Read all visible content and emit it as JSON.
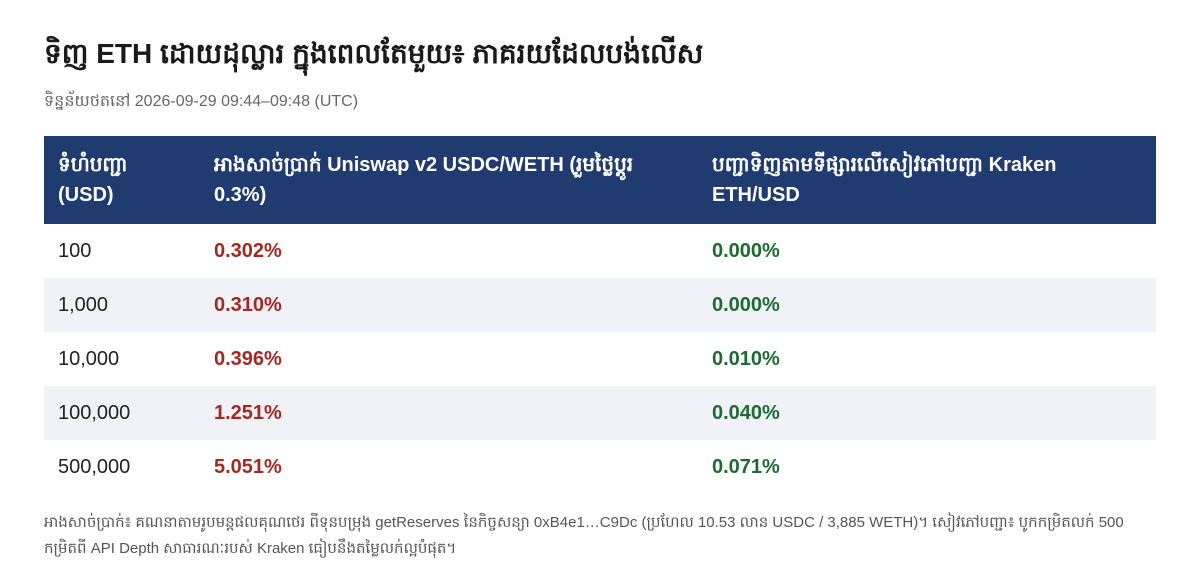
{
  "header": {
    "title": "ទិញ ETH ដោយដុល្លារ ក្នុងពេលតែមួយ៖ ភាគរយដែលបង់លើស",
    "subtitle": "ទិន្នន័យថតនៅ 2026-09-29 09:44–09:48 (UTC)"
  },
  "table": {
    "columns": [
      "ទំហំបញ្ជា (USD)",
      "អាងសាច់ប្រាក់ Uniswap v2 USDC/WETH (រួមថ្លៃប្ដូរ 0.3%)",
      "បញ្ជាទិញតាមទីផ្សារលើសៀវភៅបញ្ជា Kraken ETH/USD"
    ],
    "rows": [
      [
        "100",
        "0.302%",
        "0.000%"
      ],
      [
        "1,000",
        "0.310%",
        "0.000%"
      ],
      [
        "10,000",
        "0.396%",
        "0.010%"
      ],
      [
        "100,000",
        "1.251%",
        "0.040%"
      ],
      [
        "500,000",
        "5.051%",
        "0.071%"
      ]
    ]
  },
  "footnote": "អាងសាច់ប្រាក់៖ គណនាតាមរូបមន្តផលគុណថេរ ពីទុនបម្រុង getReserves នៃកិច្ចសន្យា 0xB4e1…C9Dc (ប្រហែល 10.53 លាន USDC / 3,885 WETH)។ សៀវភៅបញ្ជា៖ បូកកម្រិតលក់ 500 កម្រិតពី API Depth សាធារណៈរបស់ Kraken ធៀបនឹងតម្លៃលក់ល្អបំផុត។"
}
